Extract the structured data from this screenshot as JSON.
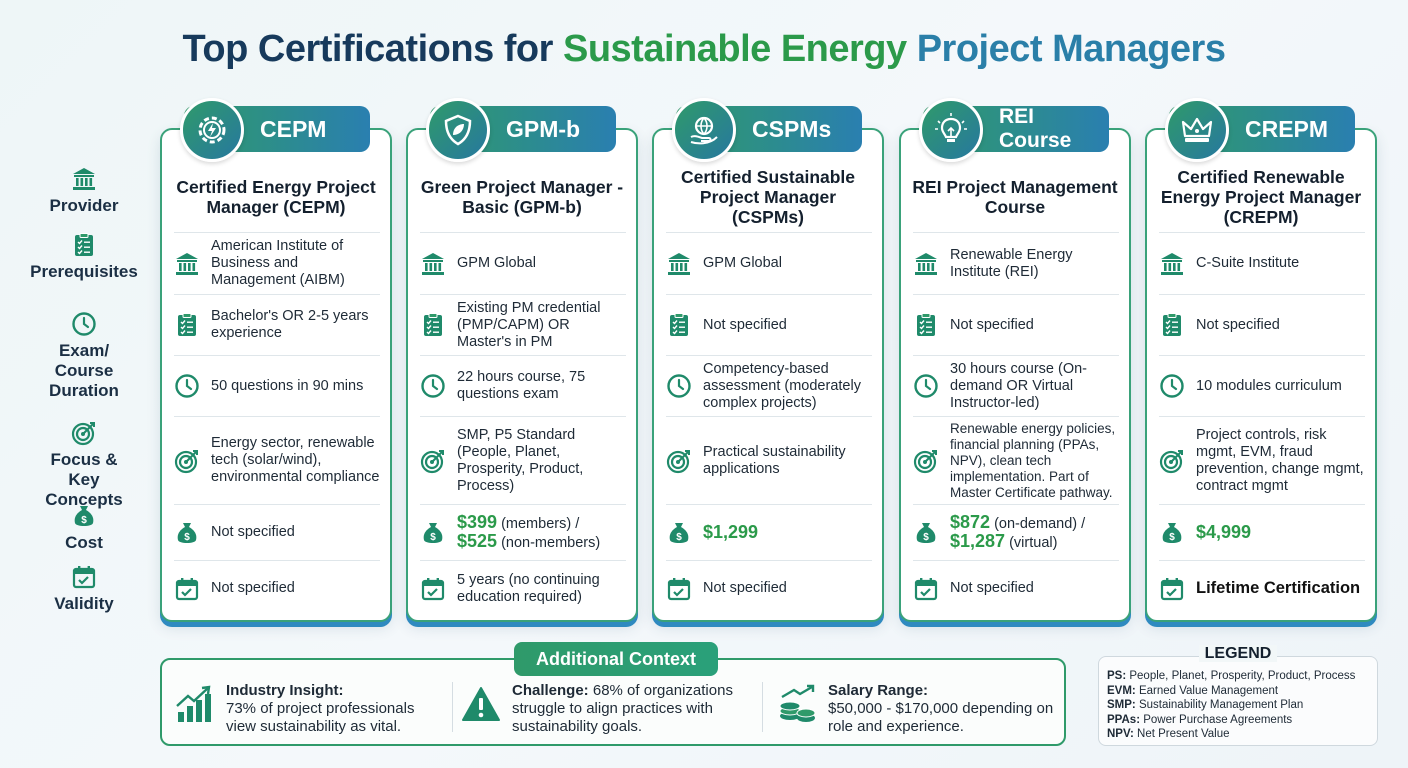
{
  "title": {
    "part1": "Top Certifications for ",
    "part2": "Sustainable Energy",
    "part3": " Project Managers"
  },
  "row_labels": [
    {
      "label": "Provider",
      "icon": "bank-icon"
    },
    {
      "label": "Prerequisites",
      "icon": "checklist-icon"
    },
    {
      "label": "Exam/ Course Duration",
      "icon": "clock-icon"
    },
    {
      "label": "Focus & Key Concepts",
      "icon": "target-icon"
    },
    {
      "label": "Cost",
      "icon": "money-bag-icon"
    },
    {
      "label": "Validity",
      "icon": "calendar-check-icon"
    }
  ],
  "cards": [
    {
      "badge": "CEPM",
      "badge_icon": "gear-bolt-icon",
      "name": "Certified Energy Project Manager (CEPM)",
      "provider": "American Institute of Business and Management (AIBM)",
      "prerequisites": "Bachelor's OR 2-5 years experience",
      "duration": "50 questions in 90 mins",
      "focus": "Energy sector, renewable tech (solar/wind), environmental compliance",
      "cost": "Not specified",
      "validity": "Not specified"
    },
    {
      "badge": "GPM-b",
      "badge_icon": "leaf-shield-icon",
      "name": "Green Project Manager - Basic (GPM-b)",
      "provider": "GPM Global",
      "prerequisites": "Existing PM credential (PMP/CAPM) OR Master's in PM",
      "duration": "22 hours course, 75 questions exam",
      "focus": "SMP, P5 Standard (People, Planet, Prosperity, Product, Process)",
      "cost_price1": "$399",
      "cost_text1": " (members) /",
      "cost_price2": "$525",
      "cost_text2": " (non-members)",
      "validity": "5 years (no continuing education required)"
    },
    {
      "badge": "CSPMs",
      "badge_icon": "globe-hand-icon",
      "name": "Certified Sustainable Project Manager (CSPMs)",
      "provider": "GPM Global",
      "prerequisites": "Not specified",
      "duration": "Competency-based assessment (moderately complex projects)",
      "focus": "Practical sustainability applications",
      "cost_price": "$1,299",
      "validity": "Not specified"
    },
    {
      "badge": "REI Course",
      "badge_icon": "lightbulb-icon",
      "name": "REI Project Management Course",
      "provider": "Renewable Energy Institute (REI)",
      "prerequisites": "Not specified",
      "duration": "30 hours course (On-demand OR Virtual Instructor-led)",
      "focus": "Renewable energy policies, financial planning (PPAs, NPV), clean tech implementation. Part of Master Certificate pathway.",
      "cost_price1": "$872",
      "cost_text1": " (on-demand) /",
      "cost_price2": "$1,287",
      "cost_text2": " (virtual)",
      "validity": "Not specified"
    },
    {
      "badge": "CREPM",
      "badge_icon": "crown-icon",
      "name": "Certified Renewable Energy Project Manager (CREPM)",
      "provider": "C-Suite Institute",
      "prerequisites": "Not specified",
      "duration": "10 modules curriculum",
      "focus": "Project controls, risk mgmt, EVM, fraud prevention, change mgmt, contract mgmt",
      "cost_price": "$4,999",
      "validity": "Lifetime Certification"
    }
  ],
  "context": {
    "title": "Additional Context",
    "insight_label": "Industry Insight:",
    "insight_text": "73% of project professionals view sustainability as vital.",
    "challenge_label": "Challenge:",
    "challenge_text": " 68% of organizations struggle to align practices with sustainability goals.",
    "salary_label": "Salary Range:",
    "salary_text": "$50,000 - $170,000 depending on role and experience."
  },
  "legend": {
    "title": "LEGEND",
    "items": [
      {
        "abbr": "PS:",
        "text": " People, Planet, Prosperity, Product, Process"
      },
      {
        "abbr": "EVM:",
        "text": " Earned Value Management"
      },
      {
        "abbr": "SMP:",
        "text": " Sustainability Management Plan"
      },
      {
        "abbr": "PPAs:",
        "text": " Power Purchase Agreements"
      },
      {
        "abbr": "NPV:",
        "text": " Net Present Value"
      }
    ]
  },
  "colors": {
    "navy": "#173a5c",
    "green": "#2b9a4a",
    "teal": "#2a7fa8"
  }
}
